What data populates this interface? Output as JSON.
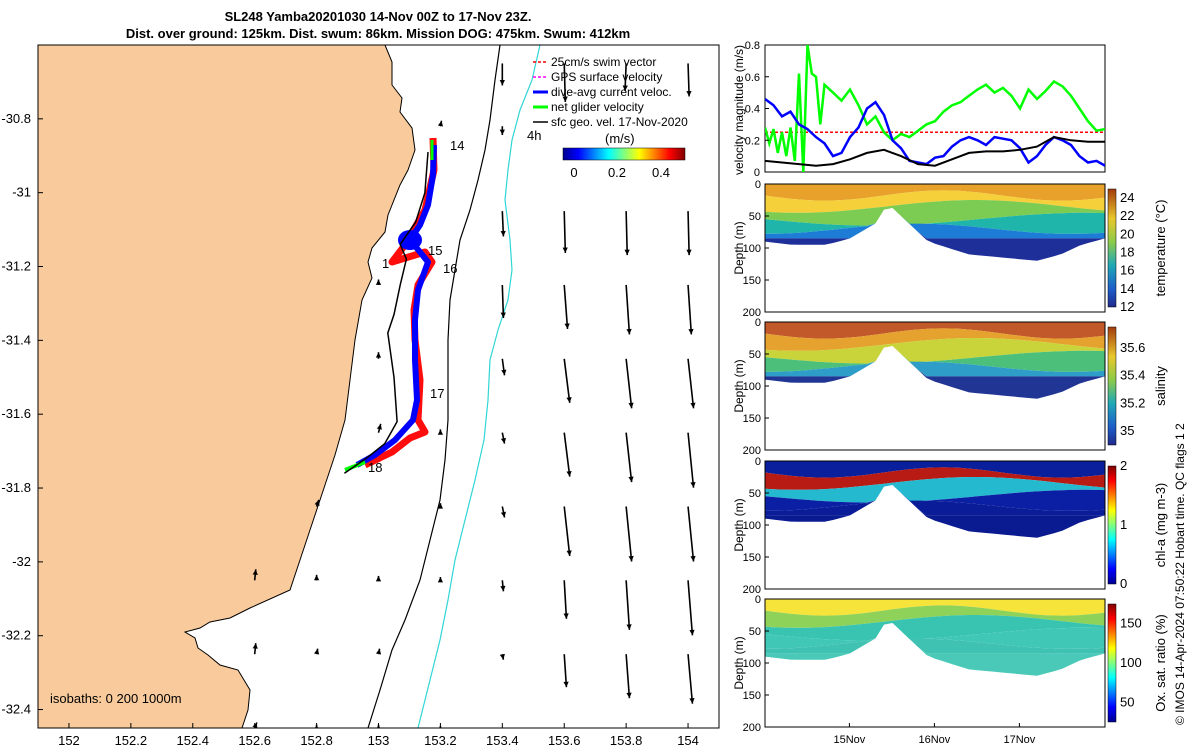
{
  "title": {
    "line1": "SL248 Yamba20201030 14-Nov 00Z to 17-Nov 23Z.",
    "line2": "Dist. over ground: 125km. Dist. swum: 86km. Mission DOG: 475km. Swum: 412km"
  },
  "colors": {
    "land": "#F9CB9C",
    "swim": "#FF0000",
    "gps": "#FF00FF",
    "current": "#0000FF",
    "net": "#00FF00",
    "geo": "#000000",
    "iso200": "#000000",
    "iso1000": "#30D5D5"
  },
  "credit": "© IMOS 14-Apr-2024 07:50:22 Hobart time. QC flags 1  2",
  "chart_data": [
    {
      "type": "map",
      "panel": "track-map",
      "xlim": [
        151.9,
        154.1
      ],
      "ylim": [
        -32.45,
        -30.6
      ],
      "xticks": [
        "152",
        "152.2",
        "152.4",
        "152.6",
        "152.8",
        "153",
        "153.2",
        "153.4",
        "153.6",
        "153.8",
        "154"
      ],
      "yticks": [
        "-30.8",
        "-31",
        "-31.2",
        "-31.4",
        "-31.6",
        "-31.8",
        "-32",
        "-32.2",
        "-32.4"
      ],
      "legend": [
        {
          "key": "swim",
          "label": "25cm/s swim vector"
        },
        {
          "key": "gps",
          "label": "GPS surface velocity"
        },
        {
          "key": "current",
          "label": "dive-avg current veloc."
        },
        {
          "key": "net",
          "label": "net glider velocity"
        },
        {
          "key": "geo",
          "label": "sfc geo. vel. 17-Nov-2020"
        }
      ],
      "scale_label": "4h",
      "colorbar": {
        "label": "(m/s)",
        "ticks": [
          "0",
          "0.2",
          "0.4"
        ],
        "range": [
          0,
          0.5
        ]
      },
      "isobath_label": "isobaths: 0   200  1000m",
      "day_labels": [
        {
          "text": "14",
          "lon": 153.16,
          "lat": -30.92
        },
        {
          "text": "15",
          "lon": 153.11,
          "lat": -31.16
        },
        {
          "text": "16",
          "lon": 153.14,
          "lat": -31.24
        },
        {
          "text": "17",
          "lon": 153.13,
          "lat": -31.55
        },
        {
          "text": "18",
          "lon": 152.97,
          "lat": -31.79
        }
      ],
      "track": [
        [
          153.16,
          -30.89
        ],
        [
          153.15,
          -31.0
        ],
        [
          153.12,
          -31.08
        ],
        [
          153.07,
          -31.14
        ],
        [
          153.09,
          -31.18
        ],
        [
          153.07,
          -31.25
        ],
        [
          153.05,
          -31.33
        ],
        [
          153.03,
          -31.38
        ],
        [
          153.05,
          -31.5
        ],
        [
          153.06,
          -31.62
        ],
        [
          153.02,
          -31.68
        ],
        [
          152.96,
          -31.72
        ],
        [
          152.89,
          -31.76
        ]
      ],
      "current_vectors": [
        {
          "lon": 153.4,
          "lat": -30.65,
          "u": 0.0,
          "v": -0.2
        },
        {
          "lon": 153.6,
          "lat": -30.65,
          "u": 0.01,
          "v": -0.35
        },
        {
          "lon": 153.8,
          "lat": -30.65,
          "u": -0.01,
          "v": -0.25
        },
        {
          "lon": 154.0,
          "lat": -30.65,
          "u": 0.01,
          "v": -0.3
        },
        {
          "lon": 153.4,
          "lat": -30.82,
          "u": 0.0,
          "v": -0.08
        },
        {
          "lon": 153.4,
          "lat": -31.05,
          "u": 0.01,
          "v": -0.23
        },
        {
          "lon": 153.6,
          "lat": -31.05,
          "u": 0.01,
          "v": -0.38
        },
        {
          "lon": 153.8,
          "lat": -31.05,
          "u": 0.01,
          "v": -0.4
        },
        {
          "lon": 154.0,
          "lat": -31.05,
          "u": 0.01,
          "v": -0.4
        },
        {
          "lon": 153.4,
          "lat": -31.25,
          "u": 0.01,
          "v": -0.3
        },
        {
          "lon": 153.6,
          "lat": -31.25,
          "u": 0.03,
          "v": -0.4
        },
        {
          "lon": 153.8,
          "lat": -31.25,
          "u": 0.03,
          "v": -0.45
        },
        {
          "lon": 154.0,
          "lat": -31.25,
          "u": 0.03,
          "v": -0.45
        },
        {
          "lon": 153.4,
          "lat": -31.45,
          "u": 0.02,
          "v": -0.15
        },
        {
          "lon": 153.6,
          "lat": -31.45,
          "u": 0.05,
          "v": -0.4
        },
        {
          "lon": 153.8,
          "lat": -31.45,
          "u": 0.05,
          "v": -0.45
        },
        {
          "lon": 154.0,
          "lat": -31.45,
          "u": 0.05,
          "v": -0.45
        },
        {
          "lon": 153.4,
          "lat": -31.65,
          "u": 0.02,
          "v": -0.1
        },
        {
          "lon": 153.6,
          "lat": -31.65,
          "u": 0.05,
          "v": -0.4
        },
        {
          "lon": 153.8,
          "lat": -31.65,
          "u": 0.05,
          "v": -0.45
        },
        {
          "lon": 154.0,
          "lat": -31.65,
          "u": 0.05,
          "v": -0.5
        },
        {
          "lon": 153.4,
          "lat": -31.85,
          "u": 0.02,
          "v": -0.1
        },
        {
          "lon": 153.6,
          "lat": -31.85,
          "u": 0.05,
          "v": -0.45
        },
        {
          "lon": 153.8,
          "lat": -31.85,
          "u": 0.05,
          "v": -0.5
        },
        {
          "lon": 154.0,
          "lat": -31.85,
          "u": 0.05,
          "v": -0.5
        },
        {
          "lon": 153.4,
          "lat": -32.05,
          "u": 0.01,
          "v": -0.1
        },
        {
          "lon": 153.6,
          "lat": -32.05,
          "u": 0.02,
          "v": -0.35
        },
        {
          "lon": 153.8,
          "lat": -32.05,
          "u": 0.03,
          "v": -0.45
        },
        {
          "lon": 154.0,
          "lat": -32.05,
          "u": 0.04,
          "v": -0.5
        },
        {
          "lon": 153.4,
          "lat": -32.25,
          "u": 0.01,
          "v": -0.05
        },
        {
          "lon": 153.6,
          "lat": -32.25,
          "u": 0.02,
          "v": -0.3
        },
        {
          "lon": 153.8,
          "lat": -32.25,
          "u": 0.03,
          "v": -0.4
        },
        {
          "lon": 154.0,
          "lat": -32.25,
          "u": 0.04,
          "v": -0.45
        },
        {
          "lon": 153.4,
          "lat": -32.45,
          "u": 0.0,
          "v": -0.05
        },
        {
          "lon": 153.6,
          "lat": -32.45,
          "u": 0.0,
          "v": -0.1
        },
        {
          "lon": 153.8,
          "lat": -32.45,
          "u": 0.0,
          "v": -0.15
        },
        {
          "lon": 154.0,
          "lat": -32.45,
          "u": 0.0,
          "v": -0.2
        },
        {
          "lon": 153.2,
          "lat": -30.82,
          "u": 0.01,
          "v": 0.05
        },
        {
          "lon": 152.6,
          "lat": -32.25,
          "u": 0.01,
          "v": 0.1
        },
        {
          "lon": 152.8,
          "lat": -32.25,
          "u": 0.01,
          "v": 0.05
        },
        {
          "lon": 153.0,
          "lat": -32.25,
          "u": 0.01,
          "v": 0.05
        },
        {
          "lon": 152.6,
          "lat": -32.05,
          "u": 0.01,
          "v": 0.1
        },
        {
          "lon": 152.8,
          "lat": -32.05,
          "u": 0.0,
          "v": 0.05
        },
        {
          "lon": 153.0,
          "lat": -32.05,
          "u": 0.0,
          "v": 0.04
        },
        {
          "lon": 153.2,
          "lat": -32.05,
          "u": 0.0,
          "v": 0.03
        },
        {
          "lon": 152.8,
          "lat": -31.85,
          "u": 0.02,
          "v": 0.06
        },
        {
          "lon": 153.2,
          "lat": -31.85,
          "u": 0.0,
          "v": 0.03
        },
        {
          "lon": 153.0,
          "lat": -31.65,
          "u": 0.02,
          "v": 0.08
        },
        {
          "lon": 153.2,
          "lat": -31.65,
          "u": 0.0,
          "v": 0.03
        },
        {
          "lon": 153.0,
          "lat": -31.45,
          "u": 0.0,
          "v": 0.06
        },
        {
          "lon": 153.0,
          "lat": -31.25,
          "u": 0.0,
          "v": 0.05
        },
        {
          "lon": 152.6,
          "lat": -32.45,
          "u": 0.02,
          "v": 0.05
        },
        {
          "lon": 152.8,
          "lat": -32.45,
          "u": 0.0,
          "v": 0.03
        },
        {
          "lon": 153.0,
          "lat": -32.45,
          "u": 0.0,
          "v": 0.03
        },
        {
          "lon": 153.2,
          "lat": -32.45,
          "u": 0.0,
          "v": 0.02
        }
      ]
    },
    {
      "type": "line",
      "panel": "velocity-magnitude",
      "ylabel": "velocity magnitude (m/s)",
      "ylim": [
        0,
        0.8
      ],
      "yticks": [
        "0",
        "0.2",
        "0.4",
        "0.6",
        "0.8"
      ],
      "xlim": [
        14.0,
        18.0
      ],
      "series": [
        {
          "key": "swim",
          "style": "dashed",
          "x": [
            14.0,
            18.0
          ],
          "y": [
            0.25,
            0.25
          ]
        },
        {
          "key": "net",
          "x": [
            14.0,
            14.05,
            14.1,
            14.15,
            14.2,
            14.25,
            14.3,
            14.35,
            14.4,
            14.45,
            14.5,
            14.55,
            14.6,
            14.65,
            14.7,
            14.8,
            14.9,
            15.0,
            15.1,
            15.2,
            15.3,
            15.4,
            15.5,
            15.6,
            15.7,
            15.8,
            15.9,
            16.0,
            16.1,
            16.2,
            16.3,
            16.4,
            16.5,
            16.6,
            16.7,
            16.8,
            16.9,
            17.0,
            17.1,
            17.2,
            17.3,
            17.4,
            17.5,
            17.6,
            17.7,
            17.8,
            17.9,
            18.0
          ],
          "y": [
            0.28,
            0.18,
            0.27,
            0.12,
            0.25,
            0.1,
            0.28,
            0.07,
            0.62,
            0.0,
            0.8,
            0.62,
            0.6,
            0.3,
            0.55,
            0.5,
            0.45,
            0.52,
            0.42,
            0.3,
            0.35,
            0.25,
            0.2,
            0.24,
            0.22,
            0.26,
            0.3,
            0.32,
            0.38,
            0.42,
            0.44,
            0.48,
            0.52,
            0.55,
            0.5,
            0.53,
            0.48,
            0.4,
            0.52,
            0.46,
            0.51,
            0.57,
            0.54,
            0.48,
            0.4,
            0.32,
            0.26,
            0.27
          ]
        },
        {
          "key": "current",
          "x": [
            14.0,
            14.1,
            14.2,
            14.3,
            14.4,
            14.5,
            14.6,
            14.7,
            14.8,
            14.9,
            15.0,
            15.1,
            15.2,
            15.3,
            15.4,
            15.5,
            15.6,
            15.7,
            15.8,
            15.9,
            16.0,
            16.1,
            16.2,
            16.3,
            16.4,
            16.5,
            16.6,
            16.7,
            16.8,
            16.9,
            17.0,
            17.1,
            17.2,
            17.3,
            17.4,
            17.5,
            17.6,
            17.7,
            17.8,
            17.9,
            18.0
          ],
          "y": [
            0.46,
            0.42,
            0.35,
            0.38,
            0.3,
            0.27,
            0.22,
            0.18,
            0.1,
            0.12,
            0.22,
            0.28,
            0.4,
            0.44,
            0.36,
            0.2,
            0.15,
            0.07,
            0.06,
            0.05,
            0.09,
            0.1,
            0.16,
            0.2,
            0.22,
            0.2,
            0.17,
            0.22,
            0.21,
            0.2,
            0.15,
            0.06,
            0.1,
            0.17,
            0.22,
            0.2,
            0.17,
            0.1,
            0.06,
            0.07,
            0.04
          ]
        },
        {
          "key": "geo",
          "x": [
            14.0,
            14.2,
            14.4,
            14.6,
            14.8,
            15.0,
            15.2,
            15.4,
            15.6,
            15.8,
            16.0,
            16.2,
            16.4,
            16.6,
            16.8,
            17.0,
            17.2,
            17.4,
            17.6,
            17.8,
            18.0
          ],
          "y": [
            0.07,
            0.06,
            0.05,
            0.04,
            0.05,
            0.08,
            0.12,
            0.14,
            0.1,
            0.05,
            0.04,
            0.08,
            0.12,
            0.13,
            0.13,
            0.14,
            0.16,
            0.22,
            0.2,
            0.19,
            0.19
          ]
        }
      ]
    },
    {
      "type": "heatmap",
      "panel": "temperature",
      "ylabel": "Depth (m)",
      "colorbar_label": "temperature (°C)",
      "colorbar_ticks": [
        "12",
        "14",
        "16",
        "18",
        "20",
        "22",
        "24"
      ],
      "clim": [
        12,
        25
      ],
      "ylim": [
        0,
        200
      ],
      "yticks": [
        "0",
        "50",
        "100",
        "150",
        "200"
      ]
    },
    {
      "type": "heatmap",
      "panel": "salinity",
      "ylabel": "Depth (m)",
      "colorbar_label": "salinity",
      "colorbar_ticks": [
        "35",
        "35.2",
        "35.4",
        "35.6"
      ],
      "clim": [
        34.9,
        35.75
      ],
      "ylim": [
        0,
        200
      ],
      "yticks": [
        "0",
        "50",
        "100",
        "150",
        "200"
      ]
    },
    {
      "type": "heatmap",
      "panel": "chlorophyll",
      "ylabel": "Depth (m)",
      "colorbar_label": "chl-a (mg m-3)",
      "colorbar_ticks": [
        "0",
        "1",
        "2"
      ],
      "clim": [
        0,
        2
      ],
      "ylim": [
        0,
        200
      ],
      "yticks": [
        "0",
        "50",
        "100",
        "150",
        "200"
      ]
    },
    {
      "type": "heatmap",
      "panel": "oxygen",
      "ylabel": "Depth (m)",
      "colorbar_label": "Ox. sat. ratio (%)",
      "colorbar_ticks": [
        "50",
        "100",
        "150"
      ],
      "clim": [
        25,
        175
      ],
      "ylim": [
        0,
        200
      ],
      "yticks": [
        "0",
        "50",
        "100",
        "150",
        "200"
      ],
      "xticks": [
        "15Nov",
        "16Nov",
        "17Nov"
      ]
    }
  ]
}
